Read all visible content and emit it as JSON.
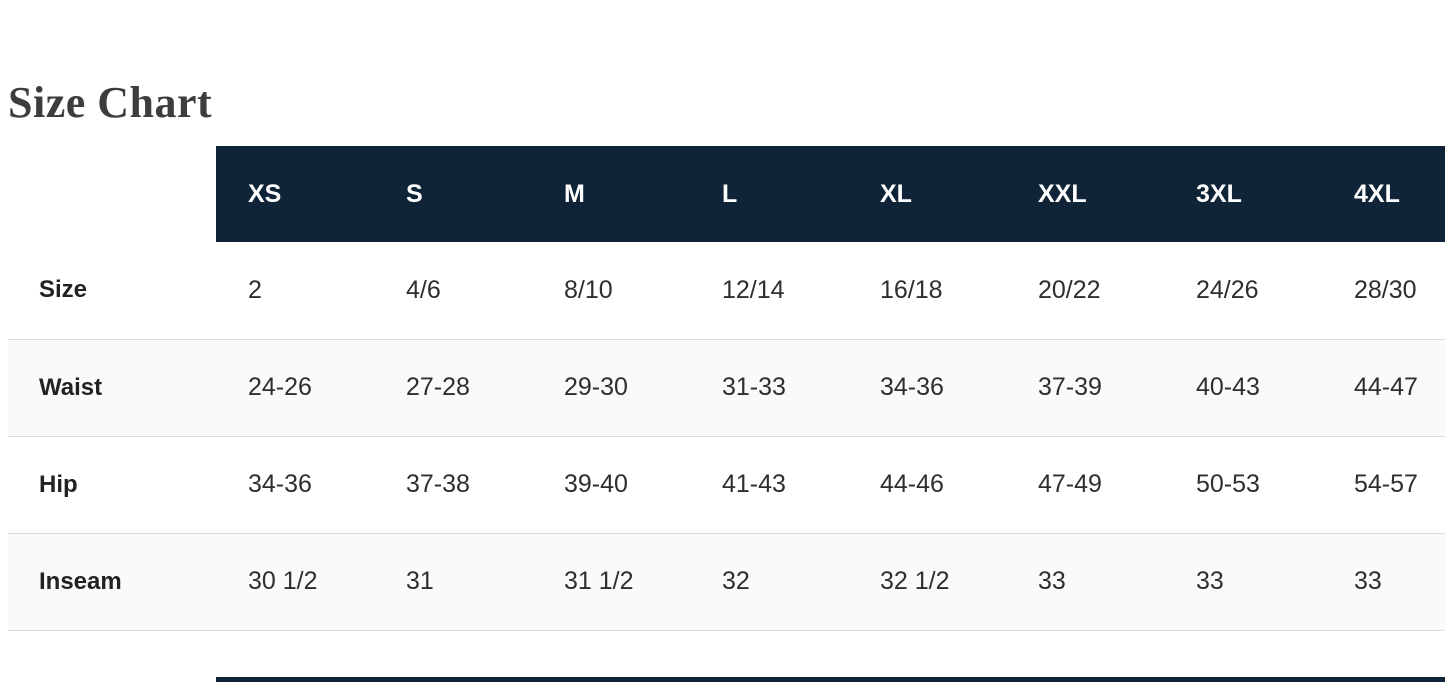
{
  "page": {
    "title": "Size Chart"
  },
  "size_chart": {
    "columns": [
      "XS",
      "S",
      "M",
      "L",
      "XL",
      "XXL",
      "3XL",
      "4XL"
    ],
    "rows": [
      {
        "label": "Size",
        "values": [
          "2",
          "4/6",
          "8/10",
          "12/14",
          "16/18",
          "20/22",
          "24/26",
          "28/30"
        ]
      },
      {
        "label": "Waist",
        "values": [
          "24-26",
          "27-28",
          "29-30",
          "31-33",
          "34-36",
          "37-39",
          "40-43",
          "44-47"
        ]
      },
      {
        "label": "Hip",
        "values": [
          "34-36",
          "37-38",
          "39-40",
          "41-43",
          "44-46",
          "47-49",
          "50-53",
          "54-57"
        ]
      },
      {
        "label": "Inseam",
        "values": [
          "30 1/2",
          "31",
          "31 1/2",
          "32",
          "32 1/2",
          "33",
          "33",
          "33"
        ]
      }
    ],
    "colors": {
      "header_background": "#0f2437",
      "header_text": "#ffffff",
      "body_text": "#2e2e2e",
      "row_label_text": "#222222",
      "stripe_background": "#fafafa",
      "row_border": "#dedede",
      "title_text": "#3d3d3d"
    }
  }
}
